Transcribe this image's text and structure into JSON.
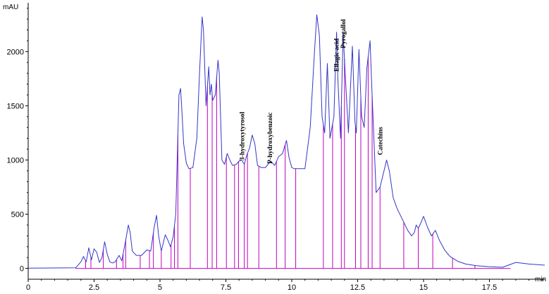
{
  "chart_data": {
    "type": "line",
    "title": "",
    "ylabel": "mAU",
    "xlabel": "min",
    "xlim": [
      0,
      19.6
    ],
    "ylim": [
      -100,
      2450
    ],
    "x_ticks": [
      0,
      2.5,
      5,
      7.5,
      10,
      12.5,
      15,
      17.5
    ],
    "x_tick_labels": [
      "0",
      "2.5",
      "5",
      "7.5",
      "10",
      "12.5",
      "15",
      "17.5"
    ],
    "y_ticks": [
      0,
      500,
      1000,
      1500,
      2000
    ],
    "y_tick_labels": [
      "0",
      "500",
      "1000",
      "1500",
      "2000"
    ],
    "series": [
      {
        "color": "#3535c8",
        "x": [
          0,
          1.8,
          2.0,
          2.1,
          2.2,
          2.3,
          2.4,
          2.5,
          2.6,
          2.7,
          2.8,
          2.9,
          3.0,
          3.1,
          3.2,
          3.3,
          3.45,
          3.55,
          3.7,
          3.8,
          3.87,
          3.95,
          4.1,
          4.3,
          4.5,
          4.65,
          4.78,
          4.87,
          4.95,
          5.05,
          5.2,
          5.3,
          5.4,
          5.5,
          5.6,
          5.72,
          5.78,
          5.82,
          5.9,
          6.0,
          6.1,
          6.25,
          6.4,
          6.5,
          6.6,
          6.65,
          6.75,
          6.85,
          6.9,
          6.95,
          7.0,
          7.1,
          7.2,
          7.25,
          7.35,
          7.45,
          7.55,
          7.65,
          7.75,
          7.9,
          8.0,
          8.1,
          8.2,
          8.3,
          8.4,
          8.5,
          8.6,
          8.7,
          8.85,
          9.0,
          9.2,
          9.35,
          9.5,
          9.65,
          9.8,
          9.9,
          10.0,
          10.1,
          10.3,
          10.5,
          10.7,
          10.85,
          10.95,
          11.05,
          11.15,
          11.25,
          11.35,
          11.45,
          11.6,
          11.7,
          11.75,
          11.85,
          11.95,
          12.05,
          12.15,
          12.3,
          12.4,
          12.45,
          12.55,
          12.65,
          12.75,
          12.85,
          12.97,
          13.05,
          13.2,
          13.35,
          13.5,
          13.6,
          13.7,
          13.85,
          14.0,
          14.2,
          14.4,
          14.55,
          14.65,
          14.72,
          14.8,
          14.9,
          15.0,
          15.15,
          15.3,
          15.45,
          15.6,
          15.8,
          16.0,
          16.3,
          16.6,
          17.0,
          17.5,
          18.0,
          18.5,
          19.0,
          19.6
        ],
        "y": [
          2,
          5,
          60,
          110,
          60,
          190,
          80,
          180,
          150,
          55,
          100,
          245,
          130,
          60,
          50,
          60,
          120,
          70,
          260,
          400,
          330,
          160,
          120,
          120,
          170,
          160,
          380,
          490,
          300,
          160,
          310,
          260,
          200,
          290,
          500,
          1600,
          1660,
          1500,
          1150,
          970,
          920,
          930,
          1200,
          1800,
          2320,
          2200,
          1500,
          1860,
          1600,
          1700,
          1550,
          1600,
          1920,
          1800,
          1000,
          960,
          1060,
          1000,
          950,
          960,
          990,
          1000,
          960,
          1050,
          1110,
          1230,
          1150,
          950,
          930,
          930,
          990,
          950,
          1030,
          1060,
          1180,
          1020,
          930,
          920,
          920,
          920,
          1300,
          1950,
          2340,
          2150,
          1400,
          1250,
          1890,
          1200,
          1400,
          2180,
          1750,
          1200,
          2170,
          1700,
          1250,
          2050,
          1350,
          1250,
          2020,
          1400,
          1300,
          1850,
          2100,
          1600,
          700,
          750,
          900,
          1000,
          900,
          650,
          550,
          450,
          350,
          300,
          330,
          400,
          370,
          420,
          480,
          380,
          300,
          350,
          260,
          170,
          110,
          65,
          40,
          25,
          15,
          10,
          55,
          40,
          30
        ]
      }
    ],
    "integration_markers": [
      1.8,
      2.18,
      2.38,
      2.85,
      3.35,
      3.6,
      3.7,
      4.25,
      4.6,
      4.75,
      5.05,
      5.42,
      5.55,
      5.68,
      6.15,
      6.8,
      6.98,
      7.15,
      7.52,
      7.83,
      7.98,
      8.2,
      8.32,
      8.75,
      9.42,
      9.75,
      10.15,
      11.2,
      11.55,
      11.88,
      12.0,
      12.42,
      12.62,
      12.9,
      13.05,
      13.35,
      14.25,
      14.8,
      15.35,
      16.1,
      16.95
    ],
    "baseline_end": 18.3,
    "annotations": [
      {
        "text": "3-hydroxytyrosol",
        "x": 8.2,
        "y": 995
      },
      {
        "text": "P-hydroxybenzoic",
        "x": 9.25,
        "y": 965
      },
      {
        "text": "Ellagic acid",
        "x": 11.78,
        "y": 1815
      },
      {
        "text": "Pyrogallol",
        "x": 12.03,
        "y": 2030
      },
      {
        "text": "Catechins",
        "x": 13.43,
        "y": 1045
      }
    ],
    "colors": {
      "trace": "#3535c8",
      "markers": "#c000c0",
      "axis": "#000000"
    },
    "grid": false,
    "legend": "none"
  }
}
